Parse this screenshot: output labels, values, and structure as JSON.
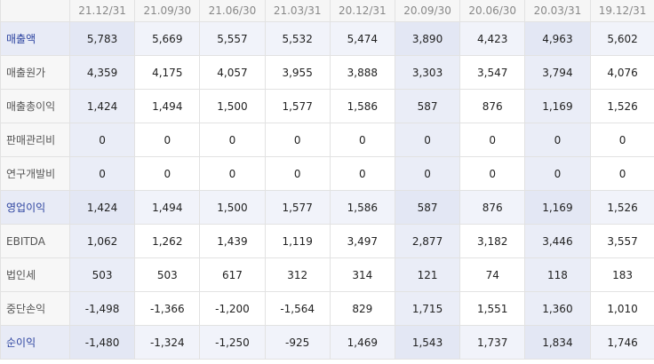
{
  "periods": [
    "21.12/31",
    "21.09/30",
    "21.06/30",
    "21.03/31",
    "20.12/31",
    "20.09/30",
    "20.06/30",
    "20.03/31",
    "19.12/31"
  ],
  "highlight_color": "#2d44a0",
  "rows": [
    {
      "label": "매출액",
      "highlight": true,
      "values": [
        "5,783",
        "5,669",
        "5,557",
        "5,532",
        "5,474",
        "3,890",
        "4,423",
        "4,963",
        "5,602"
      ]
    },
    {
      "label": "매출원가",
      "highlight": false,
      "values": [
        "4,359",
        "4,175",
        "4,057",
        "3,955",
        "3,888",
        "3,303",
        "3,547",
        "3,794",
        "4,076"
      ]
    },
    {
      "label": "매출총이익",
      "highlight": false,
      "values": [
        "1,424",
        "1,494",
        "1,500",
        "1,577",
        "1,586",
        "587",
        "876",
        "1,169",
        "1,526"
      ]
    },
    {
      "label": "판매관리비",
      "highlight": false,
      "values": [
        "0",
        "0",
        "0",
        "0",
        "0",
        "0",
        "0",
        "0",
        "0"
      ]
    },
    {
      "label": "연구개발비",
      "highlight": false,
      "values": [
        "0",
        "0",
        "0",
        "0",
        "0",
        "0",
        "0",
        "0",
        "0"
      ]
    },
    {
      "label": "영업이익",
      "highlight": true,
      "values": [
        "1,424",
        "1,494",
        "1,500",
        "1,577",
        "1,586",
        "587",
        "876",
        "1,169",
        "1,526"
      ]
    },
    {
      "label": "EBITDA",
      "highlight": false,
      "values": [
        "1,062",
        "1,262",
        "1,439",
        "1,119",
        "3,497",
        "2,877",
        "3,182",
        "3,446",
        "3,557"
      ]
    },
    {
      "label": "법인세",
      "highlight": false,
      "values": [
        "503",
        "503",
        "617",
        "312",
        "314",
        "121",
        "74",
        "118",
        "183"
      ]
    },
    {
      "label": "중단손익",
      "highlight": false,
      "values": [
        "-1,498",
        "-1,366",
        "-1,200",
        "-1,564",
        "829",
        "1,715",
        "1,551",
        "1,360",
        "1,010"
      ]
    },
    {
      "label": "순이익",
      "highlight": true,
      "values": [
        "-1,480",
        "-1,324",
        "-1,250",
        "-925",
        "1,469",
        "1,543",
        "1,737",
        "1,834",
        "1,746"
      ]
    }
  ]
}
